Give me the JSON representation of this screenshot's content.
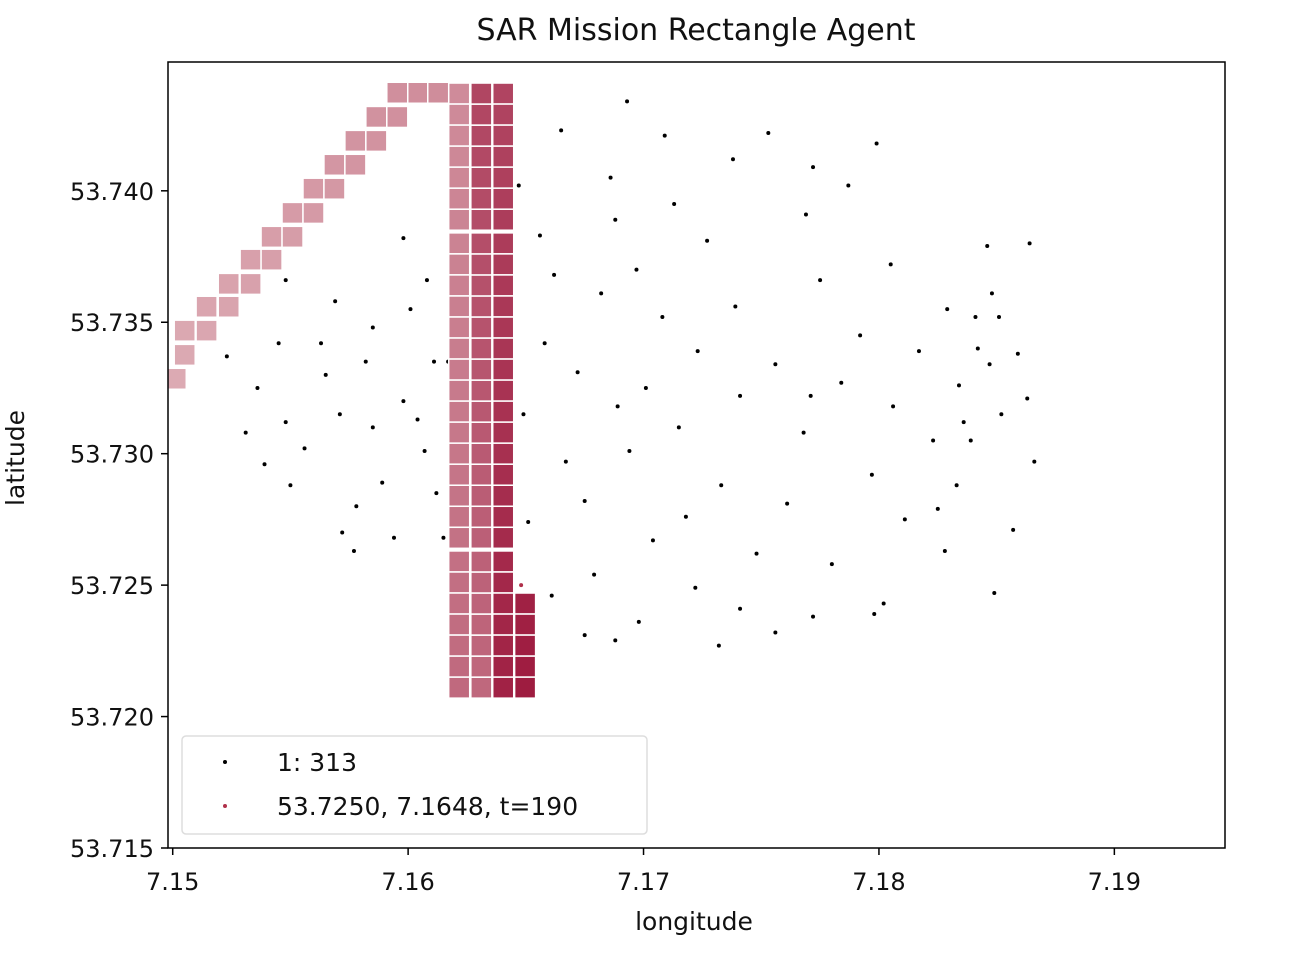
{
  "chart_data": {
    "type": "scatter",
    "title": "SAR Mission Rectangle Agent",
    "x_label": "longitude",
    "y_label": "latitude",
    "xlim": [
      7.1498,
      7.1947
    ],
    "ylim": [
      53.715,
      53.7449
    ],
    "xticks": [
      7.15,
      7.16,
      7.17,
      7.18,
      7.19
    ],
    "yticks": [
      53.715,
      {
        "value": 53.72,
        "label": "53.720"
      },
      53.725,
      {
        "value": 53.73,
        "label": "53.730"
      },
      53.735,
      {
        "value": 53.74,
        "label": "53.740"
      }
    ],
    "grid": false,
    "legend": "lower left",
    "series": [
      {
        "name": "1: 313",
        "color": "#000000",
        "x": [
          7.1672,
          7.1689,
          7.1701,
          7.1715,
          7.1658,
          7.1723,
          7.1694,
          7.1741,
          7.1667,
          7.1708,
          7.1733,
          7.1682,
          7.1756,
          7.1649,
          7.1718,
          7.1697,
          7.1768,
          7.1675,
          7.1739,
          7.1662,
          7.1784,
          7.1704,
          7.1651,
          7.1727,
          7.1792,
          7.1688,
          7.1761,
          7.1643,
          7.1748,
          7.1806,
          7.1679,
          7.1713,
          7.1775,
          7.1656,
          7.1797,
          7.1722,
          7.1817,
          7.1635,
          7.1769,
          7.1686,
          7.1823,
          7.1741,
          7.1661,
          7.1805,
          7.1632,
          7.1738,
          7.1834,
          7.1698,
          7.178,
          7.1647,
          7.1841,
          7.1624,
          7.1811,
          7.1709,
          7.1675,
          7.1852,
          7.1756,
          7.1629,
          7.1787,
          7.1859,
          7.1665,
          7.1828,
          7.1618,
          7.1732,
          7.1866,
          7.1693,
          7.1617,
          7.1846,
          7.1802,
          7.1771,
          7.1688,
          7.1753,
          7.1829,
          7.1833,
          7.1857,
          7.1836,
          7.1641,
          7.1799,
          7.1842,
          7.1772,
          7.1848,
          7.1772,
          7.1864,
          7.1851,
          7.1798,
          7.1825,
          7.1847,
          7.1849,
          7.1839,
          7.1863,
          7.1598,
          7.1582,
          7.1607,
          7.1571,
          7.1589,
          7.1563,
          7.1556,
          7.1601,
          7.1578,
          7.1548,
          7.1594,
          7.1611,
          7.1569,
          7.1539,
          7.1608,
          7.1585,
          7.1572,
          7.155,
          7.1598,
          7.1531,
          7.1612,
          7.1565,
          7.1545,
          7.1585,
          7.1523,
          7.1604,
          7.1536,
          7.1548,
          7.1577,
          7.1615
        ],
        "y": [
          53.7331,
          53.7318,
          53.7325,
          53.731,
          53.7342,
          53.7339,
          53.7301,
          53.7322,
          53.7297,
          53.7352,
          53.7288,
          53.7361,
          53.7334,
          53.7315,
          53.7276,
          53.737,
          53.7308,
          53.7282,
          53.7356,
          53.7368,
          53.7327,
          53.7267,
          53.7274,
          53.7381,
          53.7345,
          53.7389,
          53.7281,
          53.7349,
          53.7262,
          53.7318,
          53.7254,
          53.7395,
          53.7366,
          53.7383,
          53.7292,
          53.7249,
          53.7339,
          53.7301,
          53.7391,
          53.7405,
          53.7305,
          53.7241,
          53.7246,
          53.7372,
          53.7327,
          53.7412,
          53.7326,
          53.7236,
          53.7258,
          53.7402,
          53.7352,
          53.7361,
          53.7275,
          53.7421,
          53.7231,
          53.7315,
          53.7232,
          53.7286,
          53.7402,
          53.7338,
          53.7423,
          53.7263,
          53.731,
          53.7227,
          53.7297,
          53.7434,
          53.7335,
          53.7379,
          53.7243,
          53.7322,
          53.7229,
          53.7422,
          53.7355,
          53.7288,
          53.7271,
          53.7312,
          53.7262,
          53.7418,
          53.734,
          53.7409,
          53.7361,
          53.7238,
          53.738,
          53.7352,
          53.7239,
          53.7279,
          53.7334,
          53.7247,
          53.7305,
          53.7321,
          53.732,
          53.7335,
          53.7301,
          53.7315,
          53.7289,
          53.7342,
          53.7302,
          53.7355,
          53.728,
          53.7312,
          53.7268,
          53.7335,
          53.7358,
          53.7296,
          53.7366,
          53.731,
          53.727,
          53.7288,
          53.7382,
          53.7308,
          53.7285,
          53.733,
          53.7342,
          53.7348,
          53.7337,
          53.7313,
          53.7325,
          53.7366,
          53.7263,
          53.7268
        ]
      },
      {
        "name": "53.7250, 7.1648, t=190",
        "color": "#b0304a",
        "x": [
          7.1648
        ],
        "y": [
          53.725
        ]
      }
    ],
    "trajectory": {
      "colors": [
        "#dcaab3",
        "#9e1c40"
      ],
      "x": [
        7.15013,
        7.15051,
        7.15051,
        7.15144,
        7.15144,
        7.15238,
        7.15238,
        7.15331,
        7.15331,
        7.1542,
        7.1542,
        7.15509,
        7.15509,
        7.15598,
        7.15598,
        7.15687,
        7.15687,
        7.15776,
        7.15776,
        7.15865,
        7.15865,
        7.15954,
        7.15954,
        7.16043,
        7.16128,
        7.16217,
        7.16217,
        7.16217,
        7.16217,
        7.16217,
        7.16217,
        7.16217,
        7.16217,
        7.16217,
        7.16217,
        7.16217,
        7.16217,
        7.16217,
        7.16217,
        7.16217,
        7.16217,
        7.16217,
        7.16217,
        7.16217,
        7.16217,
        7.16217,
        7.16217,
        7.16217,
        7.16217,
        7.16217,
        7.16217,
        7.16217,
        7.16217,
        7.16217,
        7.16311,
        7.16311,
        7.16311,
        7.16311,
        7.16311,
        7.16311,
        7.16311,
        7.16311,
        7.16311,
        7.16311,
        7.16311,
        7.16311,
        7.16311,
        7.16311,
        7.16311,
        7.16311,
        7.16311,
        7.16311,
        7.16311,
        7.16311,
        7.16311,
        7.16311,
        7.16311,
        7.16311,
        7.16311,
        7.16311,
        7.16311,
        7.16311,
        7.16311,
        7.16404,
        7.16404,
        7.16404,
        7.16404,
        7.16404,
        7.16404,
        7.16404,
        7.16404,
        7.16404,
        7.16404,
        7.16404,
        7.16404,
        7.16404,
        7.16404,
        7.16404,
        7.16404,
        7.16404,
        7.16404,
        7.16404,
        7.16404,
        7.16404,
        7.16404,
        7.16404,
        7.16404,
        7.16404,
        7.16404,
        7.16404,
        7.16404,
        7.16404,
        7.16497,
        7.16497,
        7.16497,
        7.16497,
        7.16497
      ],
      "y": [
        53.73285,
        53.73376,
        53.73468,
        53.73468,
        53.73559,
        53.73559,
        53.73646,
        53.73646,
        53.73738,
        53.73738,
        53.73825,
        53.73825,
        53.73916,
        53.73916,
        53.74008,
        53.74008,
        53.74099,
        53.74099,
        53.7419,
        53.7419,
        53.74281,
        53.74281,
        53.74373,
        53.74373,
        53.74373,
        53.7437,
        53.7429,
        53.7421,
        53.7413,
        53.7405,
        53.7397,
        53.7389,
        53.738,
        53.7372,
        53.7364,
        53.7356,
        53.7348,
        53.734,
        53.7332,
        53.7324,
        53.7316,
        53.7308,
        53.73,
        53.7292,
        53.7284,
        53.7276,
        53.7268,
        53.7259,
        53.7251,
        53.7243,
        53.7235,
        53.7227,
        53.7219,
        53.7211,
        53.7211,
        53.7219,
        53.7227,
        53.7235,
        53.7243,
        53.7251,
        53.7259,
        53.7268,
        53.7276,
        53.7284,
        53.7292,
        53.73,
        53.7308,
        53.7316,
        53.7324,
        53.7332,
        53.734,
        53.7348,
        53.7356,
        53.7364,
        53.7372,
        53.738,
        53.7389,
        53.7397,
        53.7405,
        53.7413,
        53.7421,
        53.7429,
        53.7437,
        53.7437,
        53.7429,
        53.7421,
        53.7413,
        53.7405,
        53.7397,
        53.7389,
        53.738,
        53.7372,
        53.7364,
        53.7356,
        53.7348,
        53.734,
        53.7332,
        53.7324,
        53.7316,
        53.7308,
        53.73,
        53.7292,
        53.7284,
        53.7276,
        53.7268,
        53.7259,
        53.7251,
        53.7243,
        53.7235,
        53.7227,
        53.7219,
        53.7211,
        53.7243,
        53.7235,
        53.7227,
        53.7219,
        53.7211
      ]
    }
  }
}
